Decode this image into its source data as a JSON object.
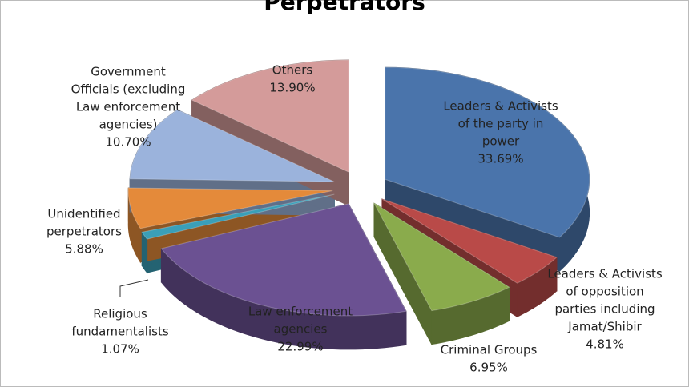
{
  "chart_data": {
    "type": "pie",
    "title": "Perpetrators",
    "categories": [
      [
        "Leaders & Activists",
        "of the party in",
        "power"
      ],
      [
        "Leaders & Activists",
        "of opposition",
        "parties including",
        "Jamat/Shibir"
      ],
      [
        "Criminal Groups"
      ],
      [
        "Law enforcement",
        "agencies"
      ],
      [
        "Religious",
        "fundamentalists"
      ],
      [
        "Unidentified",
        "perpetrators"
      ],
      [
        "Government",
        "Officials (excluding",
        "Law enforcement",
        "agencies)"
      ],
      [
        "Others"
      ]
    ],
    "values": [
      33.69,
      4.81,
      6.95,
      22.99,
      1.07,
      5.88,
      10.7,
      13.9
    ],
    "value_labels": [
      "33.69%",
      "4.81%",
      "6.95%",
      "22.99%",
      "1.07%",
      "5.88%",
      "10.70%",
      "13.90%"
    ],
    "colors": [
      "#4a74ab",
      "#b94a48",
      "#8aab4c",
      "#6b5192",
      "#3a9fb8",
      "#e48a3a",
      "#9bb3dc",
      "#d49b9a"
    ]
  }
}
